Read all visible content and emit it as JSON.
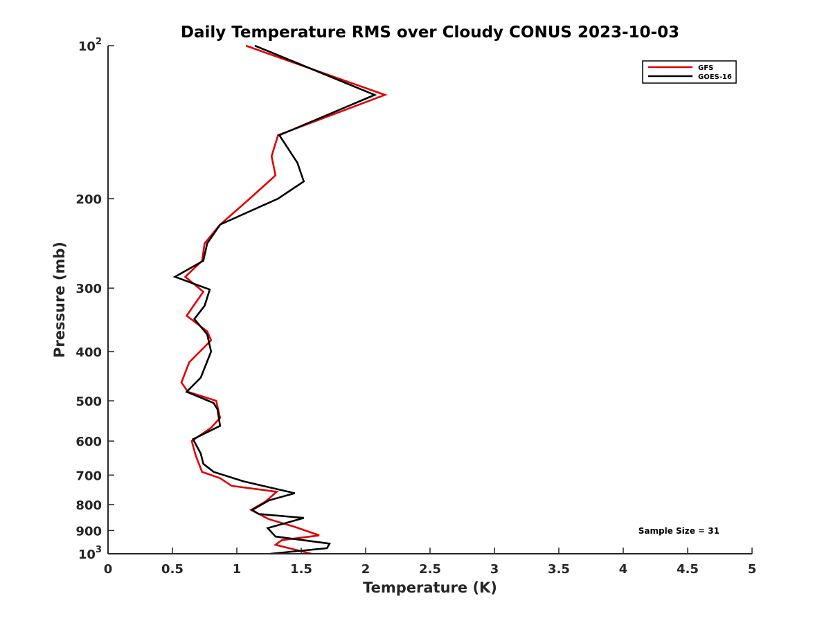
{
  "chart_data": {
    "type": "line",
    "title": "Daily Temperature RMS over Cloudy CONUS 2023-10-03",
    "xlabel": "Temperature (K)",
    "ylabel": "Pressure (mb)",
    "xlim": [
      0,
      5
    ],
    "ylim": [
      100,
      1000
    ],
    "y_scale": "log",
    "y_reversed": true,
    "grid": false,
    "legend_position": "top-right",
    "x_ticks": [
      0,
      0.5,
      1,
      1.5,
      2,
      2.5,
      3,
      3.5,
      4,
      4.5,
      5
    ],
    "x_tick_labels": [
      "0",
      "0.5",
      "1",
      "1.5",
      "2",
      "2.5",
      "3",
      "3.5",
      "4",
      "4.5",
      "5"
    ],
    "y_ticks": [
      100,
      200,
      300,
      400,
      500,
      600,
      700,
      800,
      900,
      1000
    ],
    "y_tick_labels": [
      {
        "base": "10",
        "exp": "2"
      },
      {
        "base": "200",
        "exp": ""
      },
      {
        "base": "300",
        "exp": ""
      },
      {
        "base": "400",
        "exp": ""
      },
      {
        "base": "500",
        "exp": ""
      },
      {
        "base": "600",
        "exp": ""
      },
      {
        "base": "700",
        "exp": ""
      },
      {
        "base": "800",
        "exp": ""
      },
      {
        "base": "900",
        "exp": ""
      },
      {
        "base": "10",
        "exp": "3"
      }
    ],
    "annotation": "Sample Size = 31",
    "series": [
      {
        "name": "GFS",
        "color": "#e00000",
        "points": [
          [
            1.07,
            100
          ],
          [
            2.15,
            125
          ],
          [
            1.32,
            150
          ],
          [
            1.27,
            165
          ],
          [
            1.3,
            180
          ],
          [
            1.1,
            200
          ],
          [
            0.87,
            225
          ],
          [
            0.75,
            245
          ],
          [
            0.73,
            265
          ],
          [
            0.6,
            285
          ],
          [
            0.74,
            305
          ],
          [
            0.61,
            340
          ],
          [
            0.77,
            365
          ],
          [
            0.8,
            380
          ],
          [
            0.63,
            420
          ],
          [
            0.57,
            460
          ],
          [
            0.62,
            480
          ],
          [
            0.84,
            500
          ],
          [
            0.87,
            540
          ],
          [
            0.8,
            565
          ],
          [
            0.65,
            600
          ],
          [
            0.68,
            640
          ],
          [
            0.73,
            690
          ],
          [
            0.87,
            710
          ],
          [
            0.96,
            735
          ],
          [
            1.31,
            755
          ],
          [
            1.22,
            790
          ],
          [
            1.11,
            820
          ],
          [
            1.25,
            855
          ],
          [
            1.45,
            885
          ],
          [
            1.64,
            920
          ],
          [
            1.35,
            940
          ],
          [
            1.3,
            960
          ],
          [
            1.58,
            1000
          ]
        ]
      },
      {
        "name": "GOES-16",
        "color": "#000000",
        "points": [
          [
            1.14,
            100
          ],
          [
            2.07,
            125
          ],
          [
            1.33,
            150
          ],
          [
            1.47,
            170
          ],
          [
            1.52,
            185
          ],
          [
            1.32,
            200
          ],
          [
            0.87,
            225
          ],
          [
            0.77,
            245
          ],
          [
            0.74,
            265
          ],
          [
            0.52,
            285
          ],
          [
            0.79,
            302
          ],
          [
            0.75,
            325
          ],
          [
            0.67,
            345
          ],
          [
            0.77,
            370
          ],
          [
            0.8,
            400
          ],
          [
            0.72,
            450
          ],
          [
            0.61,
            480
          ],
          [
            0.82,
            505
          ],
          [
            0.85,
            520
          ],
          [
            0.87,
            560
          ],
          [
            0.66,
            595
          ],
          [
            0.72,
            635
          ],
          [
            0.74,
            665
          ],
          [
            0.82,
            690
          ],
          [
            1.05,
            720
          ],
          [
            1.45,
            760
          ],
          [
            1.25,
            785
          ],
          [
            1.12,
            820
          ],
          [
            1.17,
            835
          ],
          [
            1.52,
            850
          ],
          [
            1.24,
            890
          ],
          [
            1.3,
            925
          ],
          [
            1.72,
            955
          ],
          [
            1.7,
            975
          ],
          [
            1.26,
            1000
          ]
        ]
      }
    ]
  }
}
